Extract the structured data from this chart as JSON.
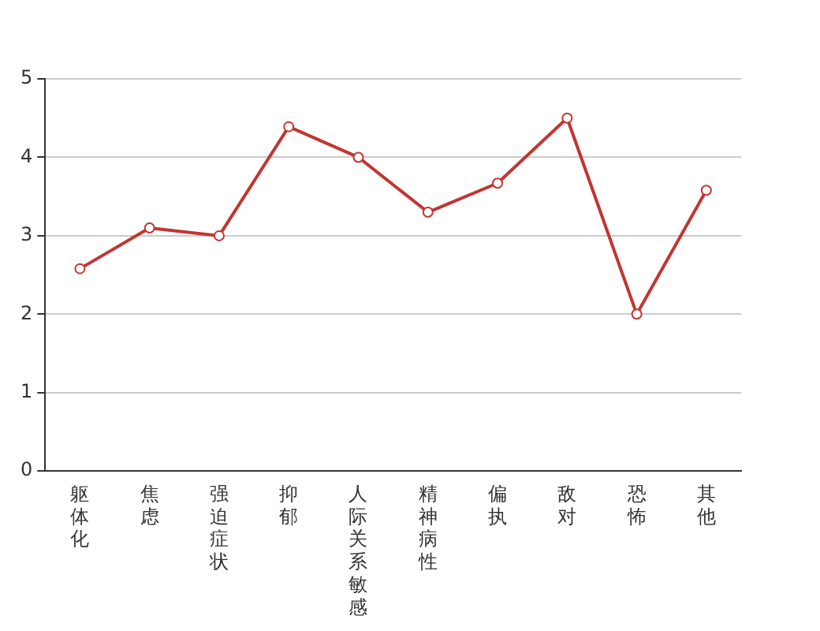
{
  "chart_data": {
    "type": "line",
    "categories": [
      "躯体化",
      "焦虑",
      "强迫症状",
      "抑郁",
      "人际关系敏感",
      "精神病性",
      "偏执",
      "敌对",
      "恐怖",
      "其他"
    ],
    "series": [
      {
        "color": "#c23531",
        "values": [
          2.58,
          3.1,
          3.0,
          4.39,
          4.0,
          3.3,
          3.67,
          4.5,
          2.0,
          3.58
        ]
      }
    ],
    "ylim": [
      0,
      5
    ],
    "yticks": [
      0,
      1,
      2,
      3,
      4,
      5
    ],
    "grid": "y",
    "legend": false,
    "marker": "circle",
    "line_style": "solid"
  }
}
